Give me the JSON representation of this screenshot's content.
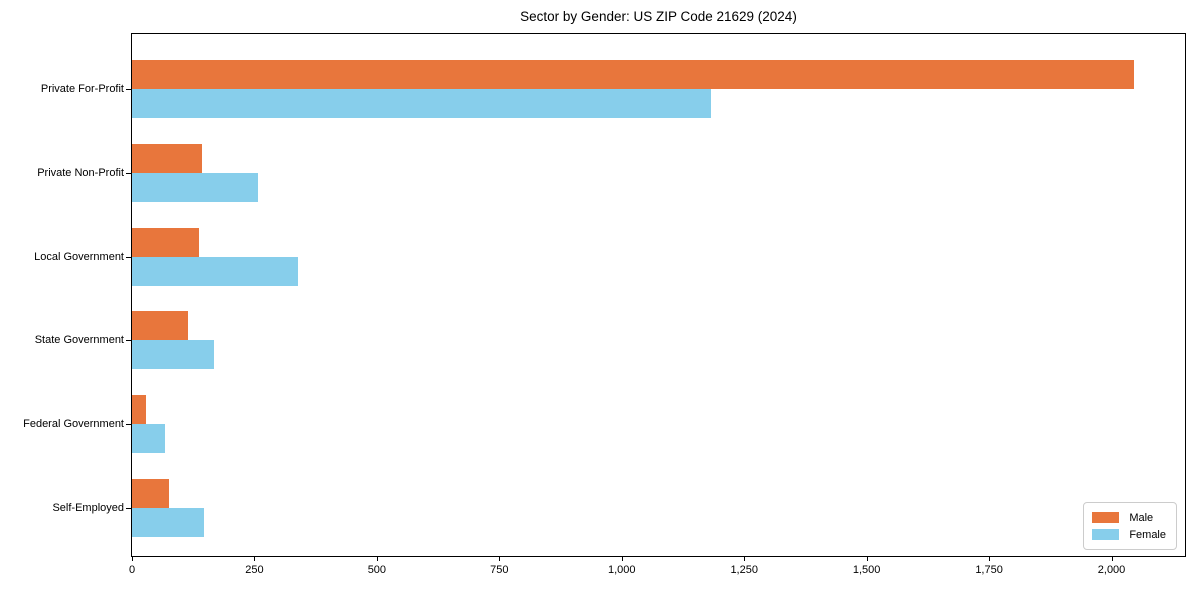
{
  "chart_data": {
    "type": "bar",
    "orientation": "horizontal",
    "title": "Sector by Gender: US ZIP Code 21629 (2024)",
    "categories": [
      "Private For-Profit",
      "Private Non-Profit",
      "Local Government",
      "State Government",
      "Federal Government",
      "Self-Employed"
    ],
    "series": [
      {
        "name": "Male",
        "color": "#E8763C",
        "values": [
          2045,
          143,
          137,
          115,
          29,
          76
        ]
      },
      {
        "name": "Female",
        "color": "#87CEEB",
        "values": [
          1183,
          258,
          338,
          167,
          67,
          146
        ]
      }
    ],
    "xlabel": "",
    "ylabel": "",
    "xlim": [
      0,
      2150
    ],
    "xticks": {
      "values": [
        0,
        250,
        500,
        750,
        1000,
        1250,
        1500,
        1750,
        2000
      ],
      "labels": [
        "0",
        "250",
        "500",
        "750",
        "1,000",
        "1,250",
        "1,500",
        "1,750",
        "2,000"
      ]
    },
    "legend_position": "lower right",
    "grid": false,
    "axis_color": "#000000"
  }
}
